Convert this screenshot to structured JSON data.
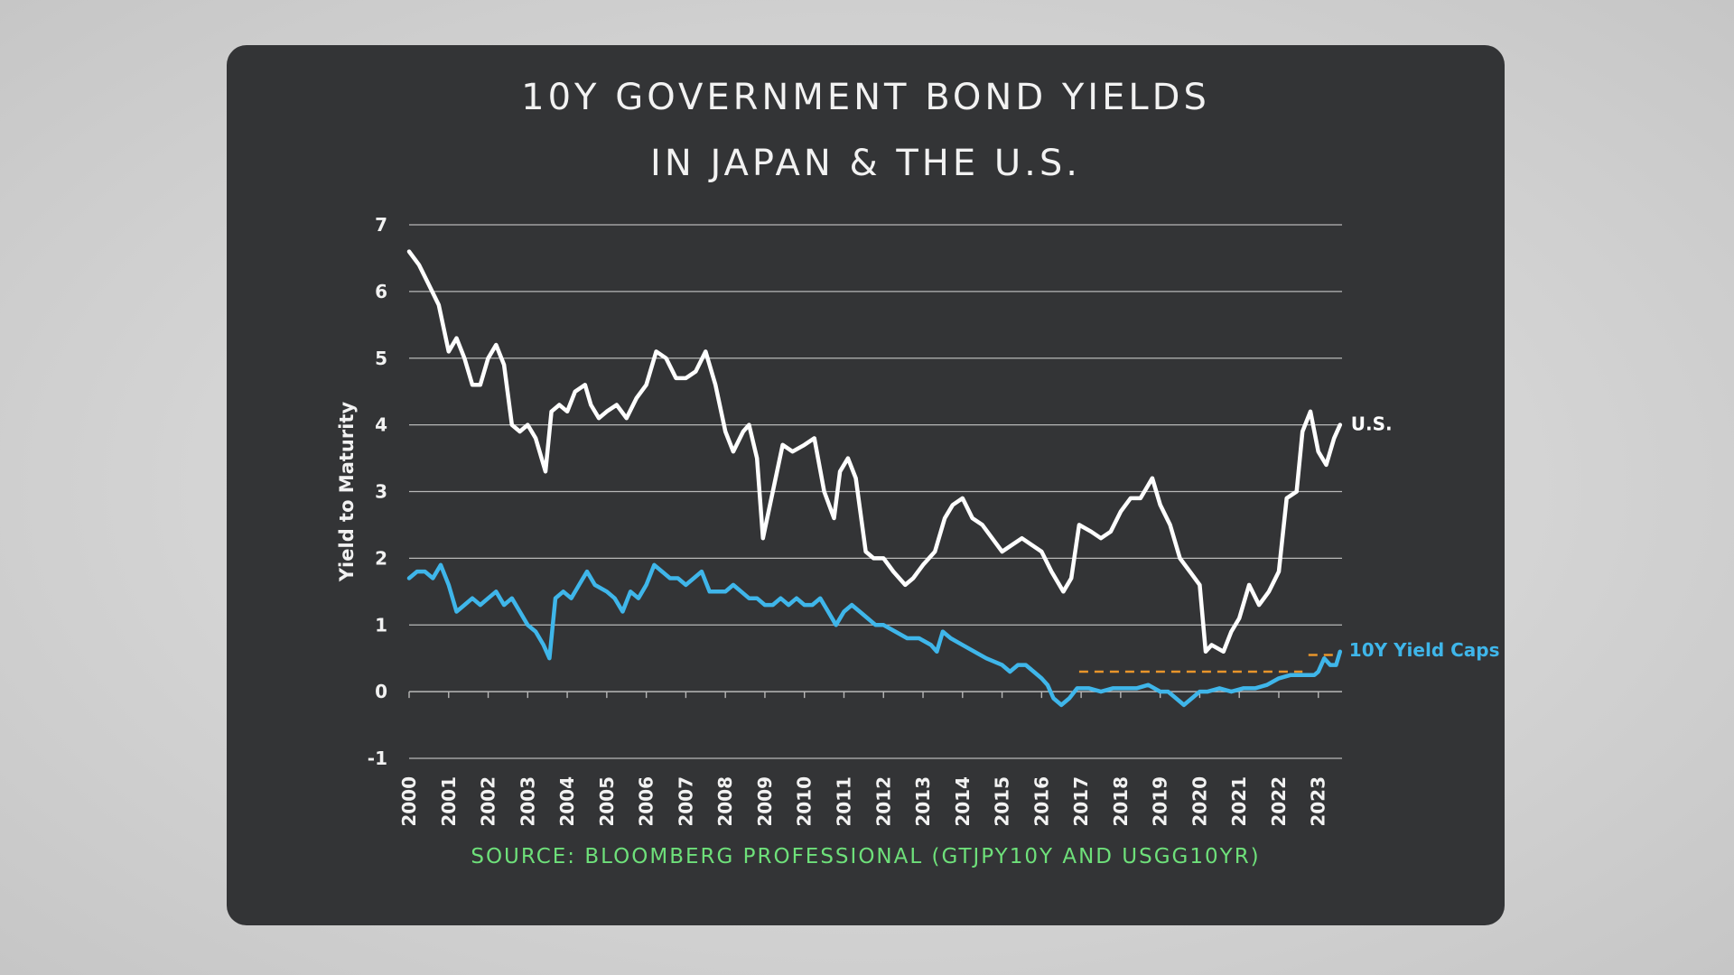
{
  "title_line1": "10Y GOVERNMENT BOND YIELDS",
  "title_line2": "IN JAPAN & THE U.S.",
  "source": "SOURCE: BLOOMBERG PROFESSIONAL (GTJPY10Y AND USGG10YR)",
  "colors": {
    "background": "#333436",
    "us": "#ffffff",
    "japan": "#3fb6ea",
    "yield_cap": "#e8952b",
    "grid": "#b8b8b8",
    "source": "#6ee07a"
  },
  "chart_data": {
    "type": "line",
    "title": "10Y GOVERNMENT BOND YIELDS IN JAPAN & THE U.S.",
    "xlabel": "",
    "ylabel": "Yield to Maturity",
    "xlim": [
      2000,
      2023.6
    ],
    "ylim": [
      -1,
      7
    ],
    "yticks": [
      -1,
      0,
      1,
      2,
      3,
      4,
      5,
      6,
      7
    ],
    "xticks": [
      "2000",
      "2001",
      "2002",
      "2003",
      "2004",
      "2005",
      "2006",
      "2007",
      "2008",
      "2009",
      "2010",
      "2011",
      "2012",
      "2013",
      "2014",
      "2015",
      "2016",
      "2017",
      "2018",
      "2019",
      "2020",
      "2021",
      "2022",
      "2023"
    ],
    "grid": true,
    "series": [
      {
        "name": "U.S.",
        "x": [
          2000.0,
          2000.25,
          2000.5,
          2000.75,
          2001.0,
          2001.2,
          2001.4,
          2001.6,
          2001.8,
          2002.0,
          2002.2,
          2002.4,
          2002.6,
          2002.8,
          2003.0,
          2003.2,
          2003.45,
          2003.6,
          2003.8,
          2004.0,
          2004.2,
          2004.45,
          2004.6,
          2004.8,
          2005.0,
          2005.25,
          2005.5,
          2005.75,
          2006.0,
          2006.25,
          2006.5,
          2006.75,
          2007.0,
          2007.25,
          2007.5,
          2007.75,
          2008.0,
          2008.2,
          2008.45,
          2008.6,
          2008.8,
          2008.95,
          2009.2,
          2009.45,
          2009.7,
          2010.0,
          2010.25,
          2010.5,
          2010.75,
          2010.9,
          2011.1,
          2011.3,
          2011.55,
          2011.75,
          2012.0,
          2012.25,
          2012.55,
          2012.75,
          2013.0,
          2013.3,
          2013.55,
          2013.75,
          2014.0,
          2014.25,
          2014.5,
          2014.75,
          2015.0,
          2015.25,
          2015.5,
          2015.75,
          2016.0,
          2016.25,
          2016.55,
          2016.75,
          2016.95,
          2017.25,
          2017.5,
          2017.75,
          2018.0,
          2018.25,
          2018.5,
          2018.8,
          2019.0,
          2019.25,
          2019.5,
          2019.75,
          2020.0,
          2020.15,
          2020.3,
          2020.6,
          2020.8,
          2021.0,
          2021.25,
          2021.5,
          2021.75,
          2022.0,
          2022.2,
          2022.45,
          2022.6,
          2022.8,
          2023.0,
          2023.2,
          2023.4,
          2023.55
        ],
        "values": [
          6.6,
          6.4,
          6.1,
          5.8,
          5.1,
          5.3,
          5.0,
          4.6,
          4.6,
          5.0,
          5.2,
          4.9,
          4.0,
          3.9,
          4.0,
          3.8,
          3.3,
          4.2,
          4.3,
          4.2,
          4.5,
          4.6,
          4.3,
          4.1,
          4.2,
          4.3,
          4.1,
          4.4,
          4.6,
          5.1,
          5.0,
          4.7,
          4.7,
          4.8,
          5.1,
          4.6,
          3.9,
          3.6,
          3.9,
          4.0,
          3.5,
          2.3,
          3.0,
          3.7,
          3.6,
          3.7,
          3.8,
          3.0,
          2.6,
          3.3,
          3.5,
          3.2,
          2.1,
          2.0,
          2.0,
          1.8,
          1.6,
          1.7,
          1.9,
          2.1,
          2.6,
          2.8,
          2.9,
          2.6,
          2.5,
          2.3,
          2.1,
          2.2,
          2.3,
          2.2,
          2.1,
          1.8,
          1.5,
          1.7,
          2.5,
          2.4,
          2.3,
          2.4,
          2.7,
          2.9,
          2.9,
          3.2,
          2.8,
          2.5,
          2.0,
          1.8,
          1.6,
          0.6,
          0.7,
          0.6,
          0.9,
          1.1,
          1.6,
          1.3,
          1.5,
          1.8,
          2.9,
          3.0,
          3.9,
          4.2,
          3.6,
          3.4,
          3.8,
          4.0
        ]
      },
      {
        "name": "10Y Yield Caps",
        "x": [
          2000.0,
          2000.2,
          2000.4,
          2000.6,
          2000.8,
          2001.0,
          2001.2,
          2001.4,
          2001.6,
          2001.8,
          2002.0,
          2002.2,
          2002.4,
          2002.6,
          2002.8,
          2003.0,
          2003.2,
          2003.4,
          2003.55,
          2003.7,
          2003.9,
          2004.1,
          2004.3,
          2004.5,
          2004.7,
          2005.0,
          2005.2,
          2005.4,
          2005.6,
          2005.8,
          2006.0,
          2006.2,
          2006.4,
          2006.6,
          2006.8,
          2007.0,
          2007.2,
          2007.4,
          2007.6,
          2007.8,
          2008.0,
          2008.2,
          2008.4,
          2008.6,
          2008.8,
          2009.0,
          2009.2,
          2009.4,
          2009.6,
          2009.8,
          2010.0,
          2010.2,
          2010.4,
          2010.6,
          2010.8,
          2011.0,
          2011.2,
          2011.4,
          2011.6,
          2011.8,
          2012.0,
          2012.3,
          2012.6,
          2012.9,
          2013.2,
          2013.35,
          2013.5,
          2013.7,
          2014.0,
          2014.3,
          2014.6,
          2015.0,
          2015.2,
          2015.4,
          2015.6,
          2015.8,
          2016.0,
          2016.15,
          2016.3,
          2016.5,
          2016.7,
          2016.9,
          2017.2,
          2017.5,
          2017.8,
          2018.1,
          2018.4,
          2018.7,
          2019.0,
          2019.2,
          2019.4,
          2019.6,
          2019.8,
          2020.0,
          2020.2,
          2020.5,
          2020.8,
          2021.1,
          2021.4,
          2021.7,
          2022.0,
          2022.3,
          2022.6,
          2022.9,
          2023.0,
          2023.15,
          2023.3,
          2023.45,
          2023.55
        ],
        "values": [
          1.7,
          1.8,
          1.8,
          1.7,
          1.9,
          1.6,
          1.2,
          1.3,
          1.4,
          1.3,
          1.4,
          1.5,
          1.3,
          1.4,
          1.2,
          1.0,
          0.9,
          0.7,
          0.5,
          1.4,
          1.5,
          1.4,
          1.6,
          1.8,
          1.6,
          1.5,
          1.4,
          1.2,
          1.5,
          1.4,
          1.6,
          1.9,
          1.8,
          1.7,
          1.7,
          1.6,
          1.7,
          1.8,
          1.5,
          1.5,
          1.5,
          1.6,
          1.5,
          1.4,
          1.4,
          1.3,
          1.3,
          1.4,
          1.3,
          1.4,
          1.3,
          1.3,
          1.4,
          1.2,
          1.0,
          1.2,
          1.3,
          1.2,
          1.1,
          1.0,
          1.0,
          0.9,
          0.8,
          0.8,
          0.7,
          0.6,
          0.9,
          0.8,
          0.7,
          0.6,
          0.5,
          0.4,
          0.3,
          0.4,
          0.4,
          0.3,
          0.2,
          0.1,
          -0.1,
          -0.2,
          -0.1,
          0.05,
          0.05,
          0.0,
          0.05,
          0.05,
          0.05,
          0.1,
          0.0,
          0.0,
          -0.1,
          -0.2,
          -0.1,
          0.0,
          0.0,
          0.05,
          0.0,
          0.05,
          0.05,
          0.1,
          0.2,
          0.25,
          0.25,
          0.25,
          0.3,
          0.5,
          0.4,
          0.4,
          0.6
        ]
      }
    ],
    "yield_caps": [
      {
        "x_start": 2016.95,
        "x_end": 2022.6,
        "value": 0.3
      },
      {
        "x_start": 2022.75,
        "x_end": 2023.55,
        "value": 0.55
      }
    ],
    "series_labels": {
      "us": "U.S.",
      "japan": "10Y Yield Caps"
    }
  }
}
